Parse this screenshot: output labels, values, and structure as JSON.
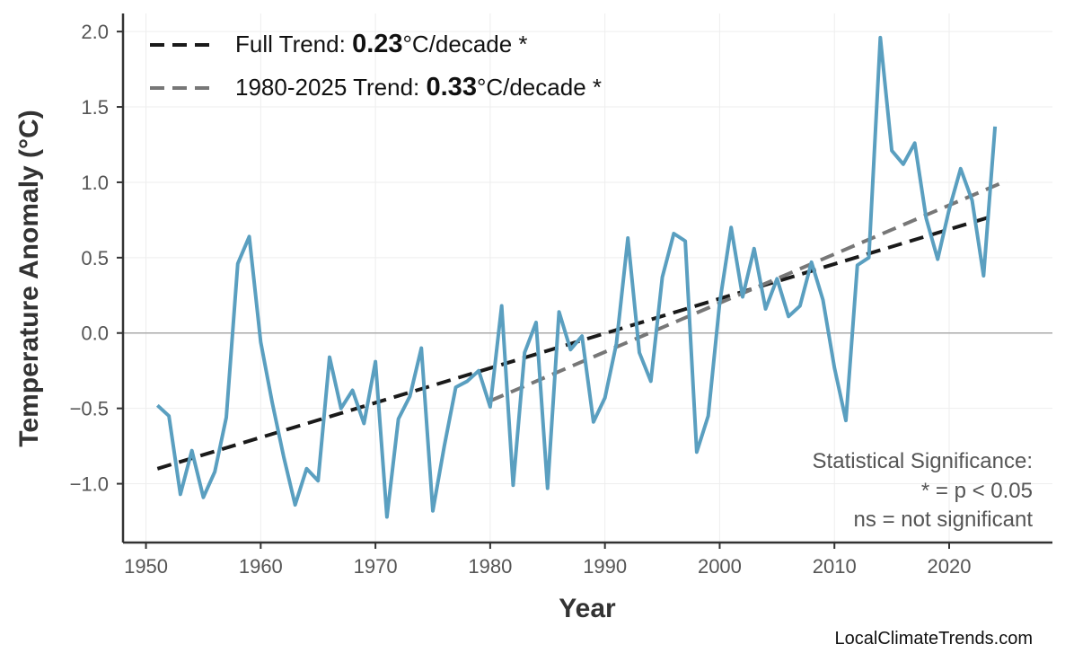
{
  "chart_data": {
    "type": "line",
    "title": "",
    "xlabel": "Year",
    "ylabel": "Temperature Anomaly (°C)",
    "xlim": [
      1948,
      2029
    ],
    "ylim": [
      -1.39,
      2.12
    ],
    "grid": true,
    "xticks": [
      1950,
      1960,
      1970,
      1980,
      1990,
      2000,
      2010,
      2020
    ],
    "yticks": [
      -1.0,
      -0.5,
      0.0,
      0.5,
      1.0,
      1.5,
      2.0
    ],
    "ytick_labels": [
      "−1.0",
      "−0.5",
      "0.0",
      "0.5",
      "1.0",
      "1.5",
      "2.0"
    ],
    "series_color": "#5A9FC0",
    "x": [
      1951,
      1952,
      1953,
      1954,
      1955,
      1956,
      1957,
      1958,
      1959,
      1960,
      1961,
      1962,
      1963,
      1964,
      1965,
      1966,
      1967,
      1968,
      1969,
      1970,
      1971,
      1972,
      1973,
      1974,
      1975,
      1976,
      1977,
      1978,
      1979,
      1980,
      1981,
      1982,
      1983,
      1984,
      1985,
      1986,
      1987,
      1988,
      1989,
      1990,
      1991,
      1992,
      1993,
      1994,
      1995,
      1996,
      1997,
      1998,
      1999,
      2000,
      2001,
      2002,
      2003,
      2004,
      2005,
      2006,
      2007,
      2008,
      2009,
      2010,
      2011,
      2012,
      2013,
      2014,
      2015,
      2016,
      2017,
      2018,
      2019,
      2020,
      2021,
      2022,
      2023,
      2024
    ],
    "y": [
      -0.48,
      -0.55,
      -1.07,
      -0.78,
      -1.09,
      -0.92,
      -0.56,
      0.46,
      0.64,
      -0.06,
      -0.46,
      -0.82,
      -1.14,
      -0.9,
      -0.98,
      -0.16,
      -0.5,
      -0.38,
      -0.6,
      -0.19,
      -1.22,
      -0.57,
      -0.42,
      -0.1,
      -1.18,
      -0.75,
      -0.36,
      -0.32,
      -0.25,
      -0.49,
      0.18,
      -1.01,
      -0.13,
      0.07,
      -1.03,
      0.14,
      -0.11,
      -0.02,
      -0.59,
      -0.43,
      -0.07,
      0.63,
      -0.13,
      -0.32,
      0.37,
      0.66,
      0.61,
      -0.79,
      -0.55,
      0.2,
      0.7,
      0.24,
      0.56,
      0.16,
      0.36,
      0.11,
      0.18,
      0.47,
      0.22,
      -0.23,
      -0.58,
      0.45,
      0.5,
      1.96,
      1.21,
      1.12,
      1.26,
      0.76,
      0.49,
      0.82,
      1.09,
      0.88,
      0.38,
      1.37
    ],
    "trends": [
      {
        "name_prefix": "Full Trend: ",
        "rate": "0.23",
        "suffix": "°C/decade *",
        "x": [
          1951,
          2024
        ],
        "y": [
          -0.9,
          0.78
        ],
        "color": "#1a1a1a"
      },
      {
        "name_prefix": "1980-2025 Trend: ",
        "rate": "0.33",
        "suffix": "°C/decade *",
        "x": [
          1980,
          2025
        ],
        "y": [
          -0.45,
          1.01
        ],
        "color": "#777777"
      }
    ],
    "legend_position": "top-left",
    "annotation": [
      "Statistical Significance:",
      "* = p < 0.05",
      "ns = not significant"
    ],
    "credit": "LocalClimateTrends.com"
  }
}
